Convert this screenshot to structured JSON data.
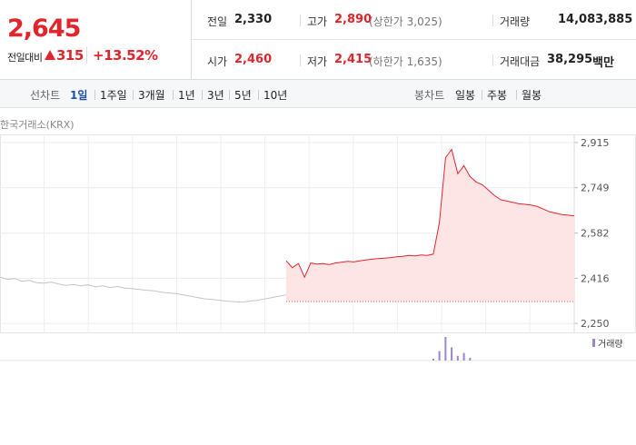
{
  "quote": {
    "price": "2,645",
    "change_label": "전일대비",
    "change": "315",
    "change_rate": "+13.52%"
  },
  "stats": [
    {
      "label": "전일",
      "value": "2,330"
    },
    {
      "label": "고가",
      "value": "2,890",
      "note": "(상한가 3,025)"
    },
    {
      "label": "거래량",
      "value": "14,083,885"
    },
    {
      "label": "시가",
      "value": "2,460"
    },
    {
      "label": "저가",
      "value": "2,415",
      "note": "(하한가 1,635)"
    },
    {
      "label": "거래대금",
      "value": "38,295",
      "unit": "백만"
    }
  ],
  "tabs": {
    "line_label": "선차트",
    "line": [
      "1일",
      "1주일",
      "3개월",
      "1년",
      "3년",
      "5년",
      "10년"
    ],
    "line_selected": 0,
    "candle_label": "봉차트",
    "candle": [
      "일봉",
      "주봉",
      "월봉"
    ]
  },
  "chart_data": {
    "type": "line",
    "source": "한국거래소(KRX)",
    "ylim": [
      2217,
      2945
    ],
    "yticks": [
      {
        "value": 2915,
        "label": "2,915"
      },
      {
        "value": 2749,
        "label": "2,749"
      },
      {
        "value": 2582,
        "label": "2,582"
      },
      {
        "value": 2416,
        "label": "2,416"
      },
      {
        "value": 2250,
        "label": "2,250"
      }
    ],
    "grid": true,
    "series": [
      {
        "color": "#c4c4c4",
        "values": [
          2420,
          2412,
          2415,
          2405,
          2408,
          2400,
          2398,
          2402,
          2395,
          2390,
          2393,
          2388,
          2392,
          2385,
          2388,
          2382,
          2386,
          2380,
          2378,
          2375,
          2372,
          2370,
          2365,
          2362,
          2360,
          2355,
          2350,
          2345,
          2340,
          2338,
          2335,
          2332,
          2330,
          2328,
          2332,
          2335,
          2340,
          2345,
          2350,
          2355
        ]
      },
      {
        "color": "#e0262c",
        "fill": "#fde5e6",
        "values": [
          2480,
          2455,
          2470,
          2420,
          2472,
          2468,
          2470,
          2466,
          2472,
          2475,
          2478,
          2476,
          2480,
          2483,
          2486,
          2488,
          2490,
          2492,
          2495,
          2497,
          2500,
          2498,
          2502,
          2500,
          2505,
          2620,
          2860,
          2890,
          2800,
          2830,
          2790,
          2770,
          2760,
          2740,
          2720,
          2705,
          2700,
          2695,
          2690,
          2688,
          2685,
          2680,
          2670,
          2660,
          2655,
          2650,
          2648,
          2645
        ]
      }
    ],
    "volume": {
      "label": "거래량",
      "color": "#9b87c7",
      "values": [
        0,
        0,
        0,
        0,
        0,
        0,
        0,
        0,
        0,
        0,
        0,
        0,
        0,
        0,
        0,
        0,
        0,
        0,
        0,
        0,
        0,
        0,
        0,
        0,
        2,
        10,
        25,
        14,
        5,
        8,
        3,
        0,
        0,
        0,
        0,
        0,
        0,
        0,
        0,
        0,
        0,
        0,
        0,
        0,
        0,
        0,
        0,
        0
      ]
    }
  }
}
